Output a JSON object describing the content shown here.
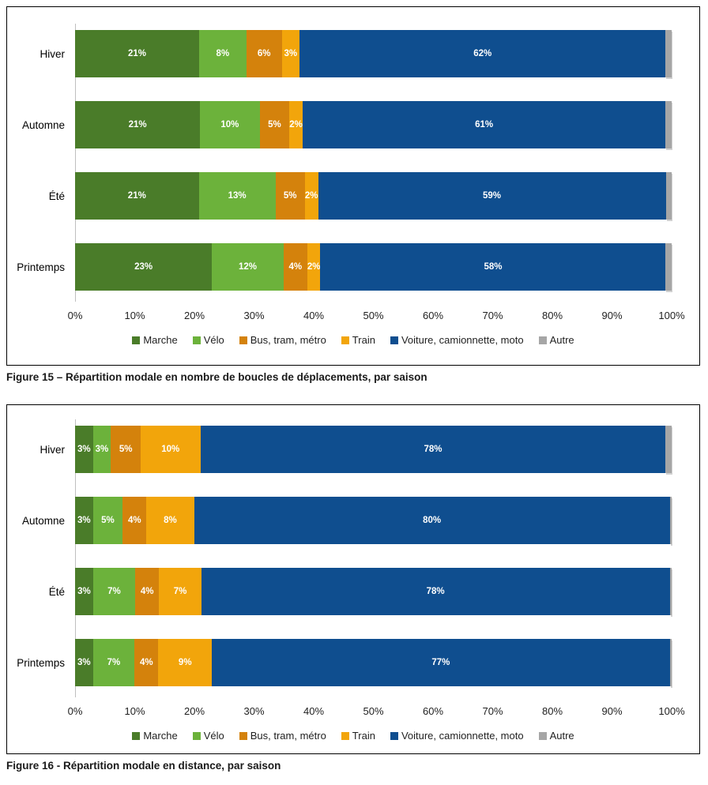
{
  "figures": [
    {
      "caption": "Figure 15 – Répartition modale en nombre de boucles de déplacements, par saison"
    },
    {
      "caption": "Figure 16 - Répartition modale en distance, par saison"
    }
  ],
  "colors": {
    "marche": "#4a7c29",
    "velo": "#6cb23b",
    "bus": "#d4820c",
    "train": "#f2a50b",
    "voiture": "#0f4e8f",
    "autre": "#a6a6a6",
    "axis_line": "#bfbfbf",
    "bar_label": "#ffffff"
  },
  "chart_data": [
    {
      "type": "bar",
      "subtype": "horizontal-stacked-100",
      "title": "Répartition modale en nombre de boucles de déplacements, par saison",
      "categories": [
        "Hiver",
        "Automne",
        "Été",
        "Printemps"
      ],
      "series": [
        {
          "name": "Marche",
          "color": "#4a7c29",
          "values": [
            21,
            21,
            21,
            23
          ]
        },
        {
          "name": "Vélo",
          "color": "#6cb23b",
          "values": [
            8,
            10,
            13,
            12
          ]
        },
        {
          "name": "Bus, tram, métro",
          "color": "#d4820c",
          "values": [
            6,
            5,
            5,
            4
          ]
        },
        {
          "name": "Train",
          "color": "#f2a50b",
          "values": [
            3,
            2,
            2,
            2
          ]
        },
        {
          "name": "Voiture, camionnette, moto",
          "color": "#0f4e8f",
          "values": [
            62,
            61,
            59,
            58
          ]
        },
        {
          "name": "Autre",
          "color": "#a6a6a6",
          "values": [
            1,
            1,
            1,
            1
          ],
          "labels_shown": false
        }
      ],
      "x_ticks": [
        "0%",
        "10%",
        "20%",
        "30%",
        "40%",
        "50%",
        "60%",
        "70%",
        "80%",
        "90%",
        "100%"
      ],
      "xlim": [
        0,
        100
      ],
      "xlabel": "",
      "ylabel": "",
      "grid": false,
      "legend_position": "bottom",
      "value_label_format": "percent"
    },
    {
      "type": "bar",
      "subtype": "horizontal-stacked-100",
      "title": "Répartition modale en distance, par saison",
      "categories": [
        "Hiver",
        "Automne",
        "Été",
        "Printemps"
      ],
      "series": [
        {
          "name": "Marche",
          "color": "#4a7c29",
          "values": [
            3,
            3,
            3,
            3
          ]
        },
        {
          "name": "Vélo",
          "color": "#6cb23b",
          "values": [
            3,
            5,
            7,
            7
          ]
        },
        {
          "name": "Bus, tram, métro",
          "color": "#d4820c",
          "values": [
            5,
            4,
            4,
            4
          ]
        },
        {
          "name": "Train",
          "color": "#f2a50b",
          "values": [
            10,
            8,
            7,
            9
          ]
        },
        {
          "name": "Voiture, camionnette, moto",
          "color": "#0f4e8f",
          "values": [
            78,
            80,
            78,
            77
          ]
        },
        {
          "name": "Autre",
          "color": "#a6a6a6",
          "values": [
            1,
            0.3,
            0.3,
            0.3
          ],
          "labels_shown": false
        }
      ],
      "x_ticks": [
        "0%",
        "10%",
        "20%",
        "30%",
        "40%",
        "50%",
        "60%",
        "70%",
        "80%",
        "90%",
        "100%"
      ],
      "xlim": [
        0,
        100
      ],
      "xlabel": "",
      "ylabel": "",
      "grid": false,
      "legend_position": "bottom",
      "value_label_format": "percent"
    }
  ]
}
